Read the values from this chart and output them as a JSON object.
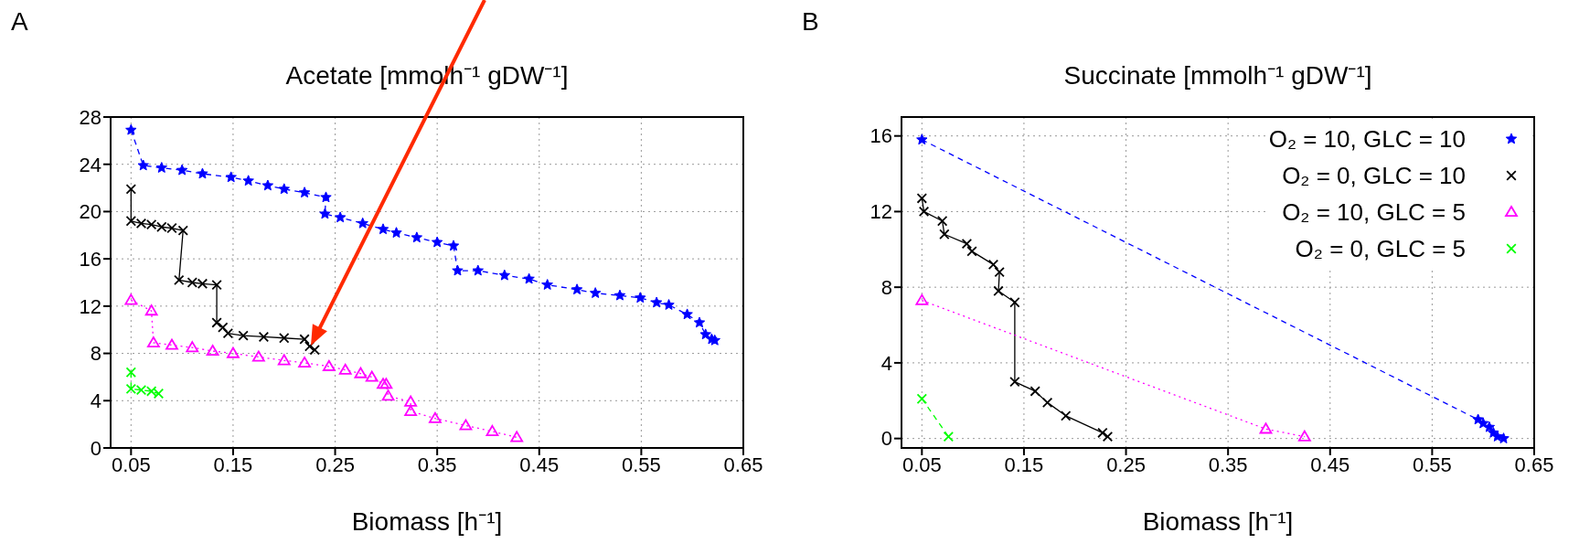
{
  "chart_data": [
    {
      "type": "line",
      "title": "Acetate  [mmolh⁻¹ gDW⁻¹]",
      "xlabel": "Biomass  [h⁻¹]",
      "annotations": [
        "A"
      ],
      "xlim": [
        0.03,
        0.65
      ],
      "xticks": [
        0.05,
        0.15,
        0.25,
        0.35,
        0.45,
        0.55,
        0.65
      ],
      "ylim": [
        0,
        28
      ],
      "yticks": [
        0,
        4,
        8,
        12,
        16,
        20,
        24,
        28
      ],
      "grid": true,
      "legend": false,
      "series": [
        {
          "color": "#0000ff",
          "marker": "star",
          "line_style": "dashed",
          "x": [
            0.05,
            0.062,
            0.08,
            0.1,
            0.12,
            0.148,
            0.165,
            0.184,
            0.2,
            0.22,
            0.241,
            0.24,
            0.255,
            0.277,
            0.297,
            0.31,
            0.33,
            0.35,
            0.366,
            0.37,
            0.39,
            0.416,
            0.44,
            0.458,
            0.487,
            0.505,
            0.529,
            0.549,
            0.565,
            0.577,
            0.595,
            0.607,
            0.613,
            0.619,
            0.622
          ],
          "values": [
            26.9,
            23.9,
            23.7,
            23.5,
            23.2,
            22.9,
            22.6,
            22.2,
            21.9,
            21.6,
            21.2,
            19.8,
            19.5,
            19.0,
            18.5,
            18.2,
            17.8,
            17.4,
            17.1,
            15.0,
            15.0,
            14.6,
            14.3,
            13.8,
            13.4,
            13.1,
            12.9,
            12.7,
            12.3,
            12.1,
            11.3,
            10.6,
            9.6,
            9.2,
            9.1
          ]
        },
        {
          "color": "#000000",
          "marker": "cross",
          "line_style": "solid",
          "x": [
            0.05,
            0.05,
            0.06,
            0.07,
            0.08,
            0.09,
            0.101,
            0.097,
            0.11,
            0.12,
            0.134,
            0.134,
            0.14,
            0.145,
            0.16,
            0.18,
            0.2,
            0.22,
            0.225,
            0.23
          ],
          "values": [
            21.9,
            19.2,
            19.0,
            18.9,
            18.7,
            18.6,
            18.4,
            14.2,
            14.0,
            13.9,
            13.8,
            10.6,
            10.2,
            9.7,
            9.5,
            9.4,
            9.3,
            9.2,
            8.6,
            8.3
          ]
        },
        {
          "color": "#ff00ff",
          "marker": "triangle",
          "line_style": "dotted",
          "x": [
            0.05,
            0.07,
            0.072,
            0.09,
            0.11,
            0.13,
            0.15,
            0.175,
            0.2,
            0.22,
            0.244,
            0.26,
            0.275,
            0.286,
            0.297,
            0.3,
            0.302,
            0.324,
            0.324,
            0.348,
            0.378,
            0.404,
            0.428
          ],
          "values": [
            12.5,
            11.6,
            8.9,
            8.7,
            8.5,
            8.2,
            8.0,
            7.7,
            7.4,
            7.2,
            6.9,
            6.6,
            6.3,
            6.0,
            5.4,
            5.4,
            4.4,
            3.9,
            3.1,
            2.5,
            1.9,
            1.4,
            0.9
          ]
        },
        {
          "color": "#00ff00",
          "marker": "cross",
          "line_style": "dashed",
          "x": [
            0.05,
            0.05,
            0.06,
            0.07,
            0.077
          ],
          "values": [
            6.4,
            5.0,
            4.9,
            4.8,
            4.6
          ]
        }
      ]
    },
    {
      "type": "line",
      "title": "Succinate  [mmolh⁻¹ gDW⁻¹]",
      "xlabel": "Biomass  [h⁻¹]",
      "annotations": [
        "B"
      ],
      "xlim": [
        0.03,
        0.65
      ],
      "xticks": [
        0.05,
        0.15,
        0.25,
        0.35,
        0.45,
        0.55,
        0.65
      ],
      "ylim": [
        -0.5,
        17
      ],
      "yticks": [
        0,
        4,
        8,
        12,
        16
      ],
      "grid": true,
      "legend": "top right",
      "series": [
        {
          "name": "O₂ = 10, GLC = 10",
          "color": "#0000ff",
          "marker": "star",
          "line_style": "dashed",
          "x": [
            0.05,
            0.595,
            0.6,
            0.606,
            0.61,
            0.614,
            0.62
          ],
          "values": [
            15.8,
            1.0,
            0.8,
            0.6,
            0.3,
            0.1,
            0.0
          ]
        },
        {
          "name": "O₂ = 0, GLC = 10",
          "color": "#000000",
          "marker": "cross",
          "line_style": "solid",
          "x": [
            0.05,
            0.052,
            0.07,
            0.072,
            0.094,
            0.099,
            0.12,
            0.126,
            0.125,
            0.141,
            0.141,
            0.161,
            0.173,
            0.191,
            0.227,
            0.232
          ],
          "values": [
            12.7,
            12.0,
            11.5,
            10.8,
            10.3,
            9.9,
            9.2,
            8.8,
            7.8,
            7.2,
            3.0,
            2.5,
            1.9,
            1.2,
            0.3,
            0.1
          ]
        },
        {
          "name": "O₂ = 10, GLC = 5",
          "color": "#ff00ff",
          "marker": "triangle",
          "line_style": "dotted",
          "x": [
            0.05,
            0.387,
            0.425
          ],
          "values": [
            7.3,
            0.5,
            0.1
          ]
        },
        {
          "name": "O₂ = 0, GLC = 5",
          "color": "#00ff00",
          "marker": "cross",
          "line_style": "dashed",
          "x": [
            0.05,
            0.076
          ],
          "values": [
            2.1,
            0.1
          ]
        }
      ]
    }
  ]
}
